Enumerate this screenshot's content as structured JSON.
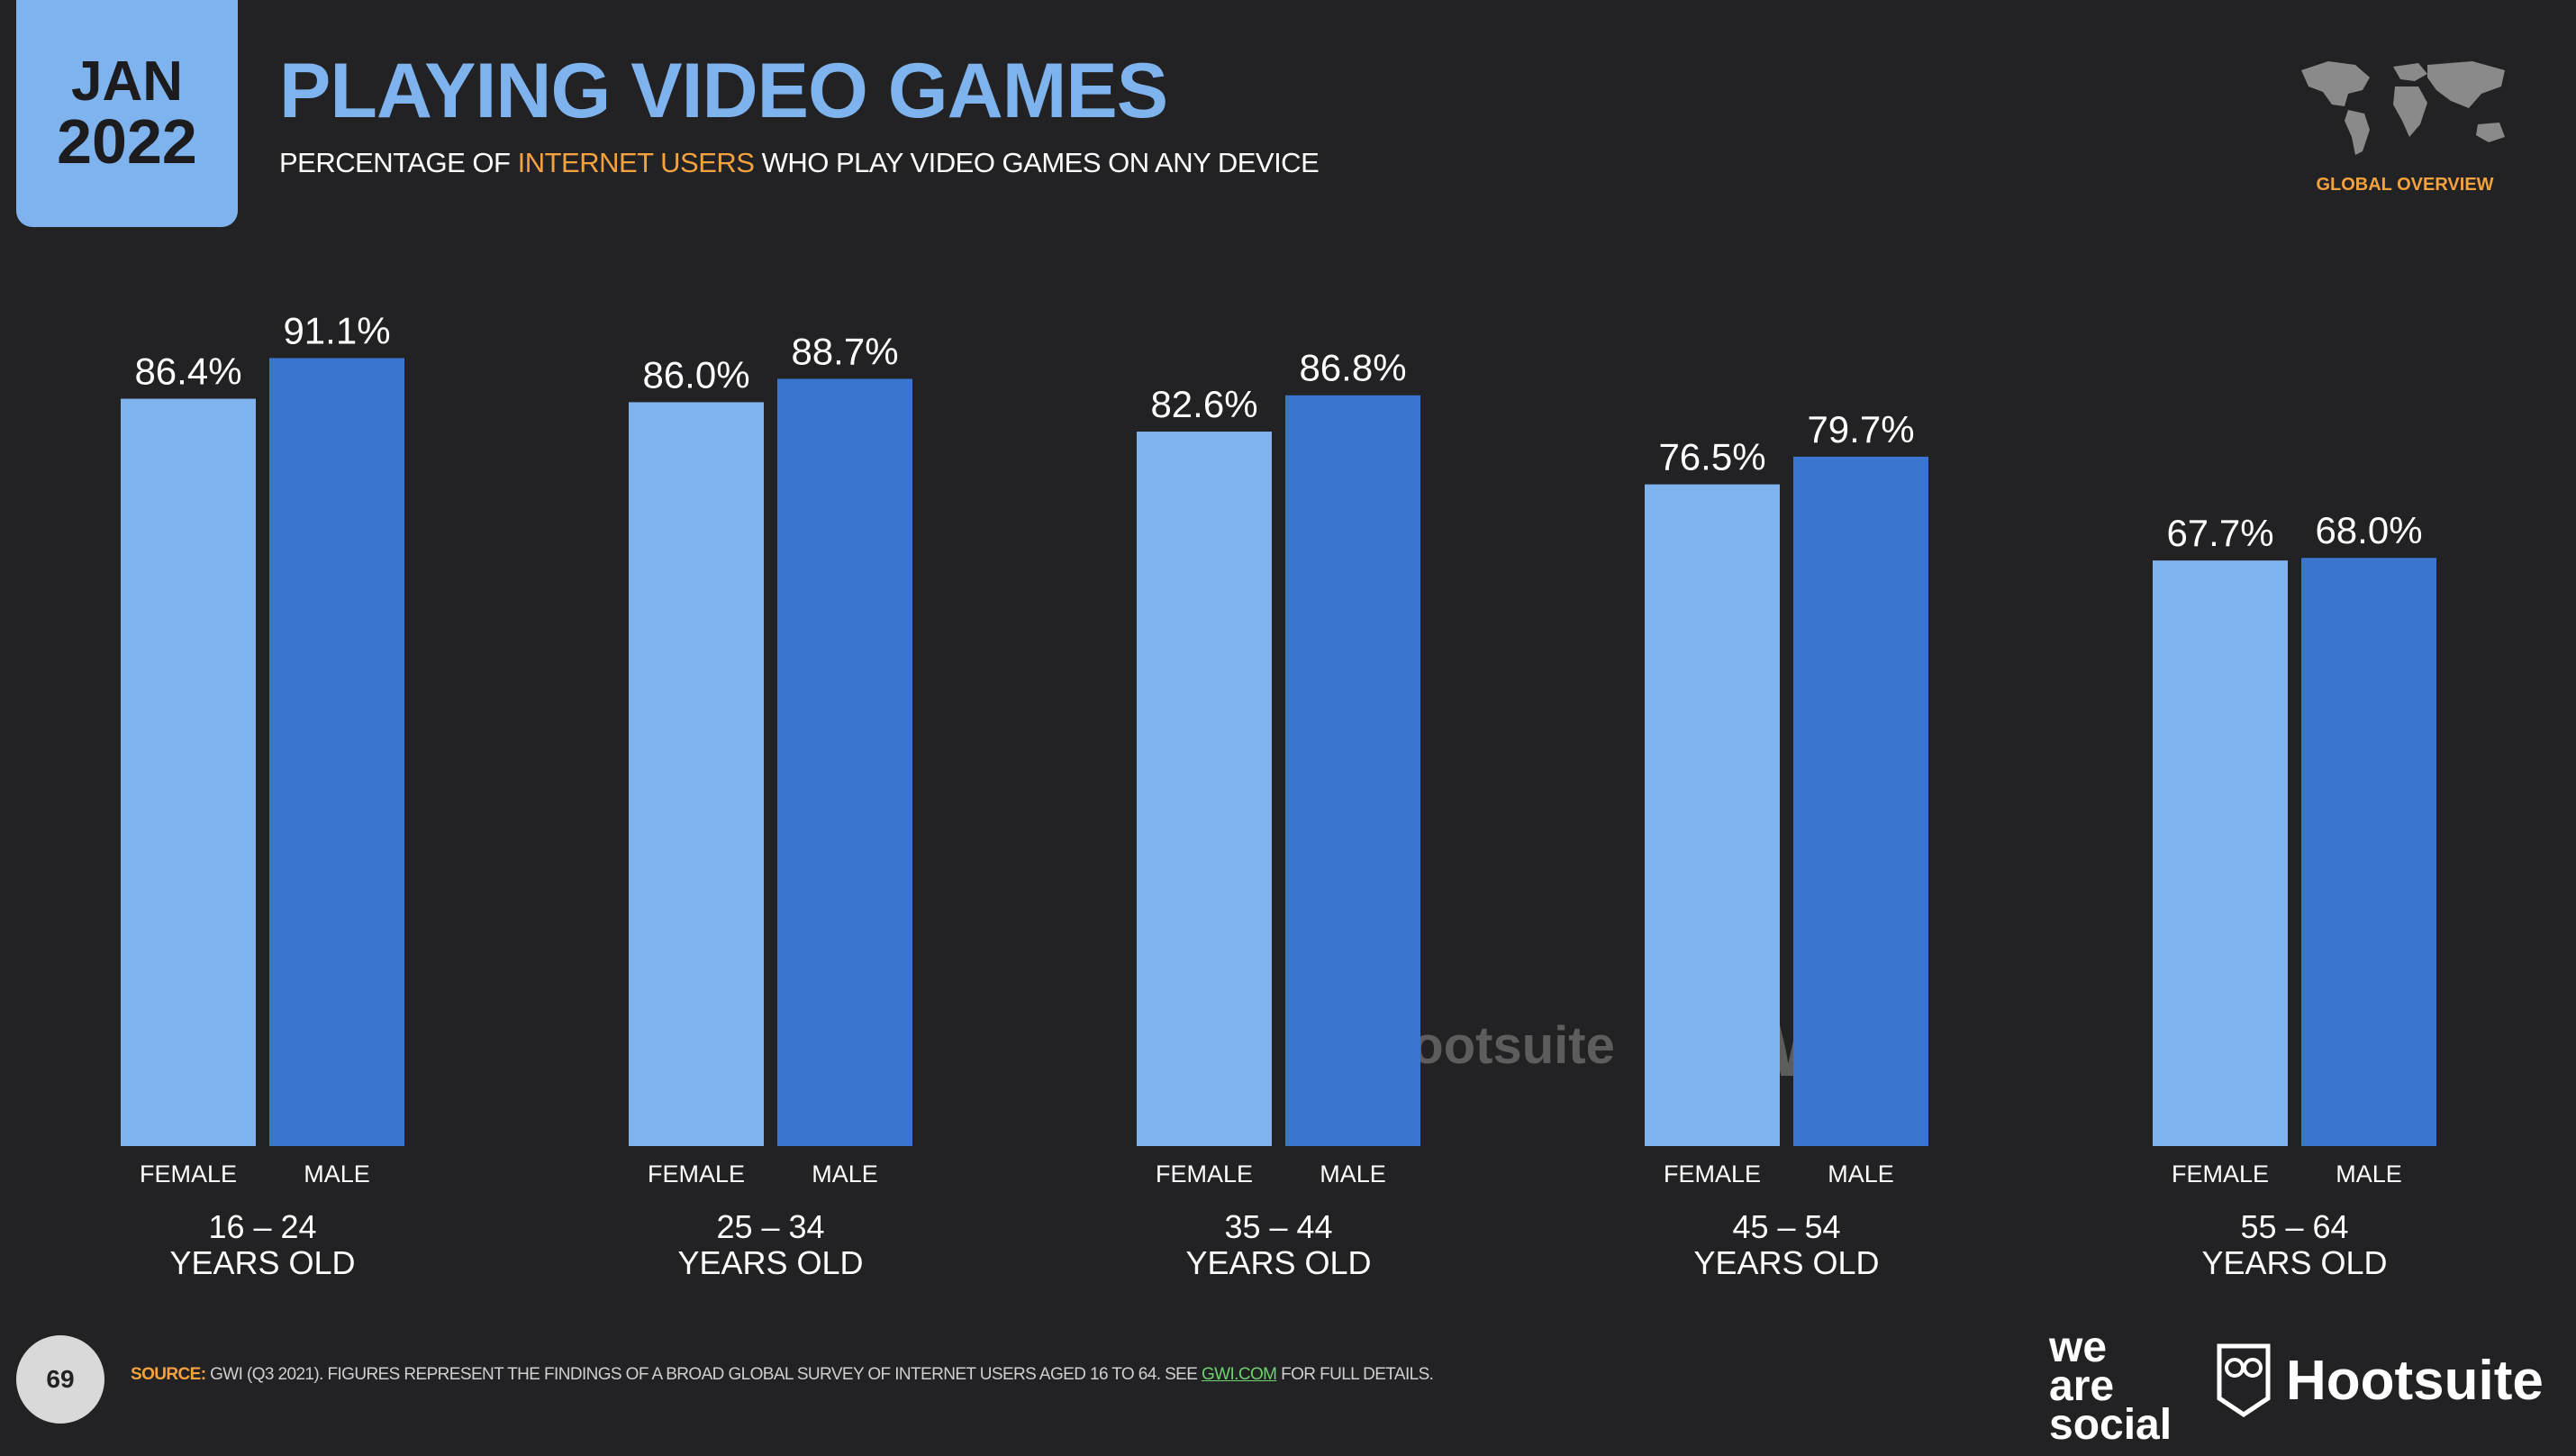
{
  "header": {
    "date_month": "JAN",
    "date_year": "2022",
    "title": "PLAYING VIDEO GAMES",
    "subtitle_pre": "PERCENTAGE OF",
    "subtitle_highlight": "INTERNET USERS",
    "subtitle_post": "WHO PLAY VIDEO GAMES ON ANY DEVICE",
    "overview_label": "GLOBAL OVERVIEW"
  },
  "colors": {
    "background": "#222224",
    "female_bar": "#7fb3ee",
    "male_bar": "#3a75d0",
    "accent": "#f4a13f",
    "title": "#7fb3ee"
  },
  "chart_data": {
    "type": "bar",
    "categories": [
      "16 – 24",
      "25 – 34",
      "35 – 44",
      "45 – 54",
      "55 – 64"
    ],
    "category_suffix": "YEARS OLD",
    "series": [
      {
        "name": "FEMALE",
        "values": [
          86.4,
          86.0,
          82.6,
          76.5,
          67.7
        ]
      },
      {
        "name": "MALE",
        "values": [
          91.1,
          88.7,
          86.8,
          79.7,
          68.0
        ]
      }
    ],
    "value_labels": [
      [
        "86.4%",
        "86.0%",
        "82.6%",
        "76.5%",
        "67.7%"
      ],
      [
        "91.1%",
        "88.7%",
        "86.8%",
        "79.7%",
        "68.0%"
      ]
    ],
    "ylim": [
      0,
      100
    ],
    "grid": false,
    "legend": "none"
  },
  "watermark": {
    "we_are_social": [
      "we",
      "are",
      "social"
    ],
    "hootsuite": "Hootsuite",
    "gwi": "GWI."
  },
  "footer": {
    "page_number": "69",
    "source_label": "SOURCE:",
    "source_text": "GWI (Q3 2021). FIGURES REPRESENT THE FINDINGS OF A BROAD GLOBAL SURVEY OF INTERNET USERS AGED 16 TO 64. SEE",
    "source_link": "GWI.COM",
    "source_tail": "FOR FULL DETAILS.",
    "logo_we": "we",
    "logo_are": "are",
    "logo_social": "social",
    "logo_hootsuite": "Hootsuite"
  }
}
